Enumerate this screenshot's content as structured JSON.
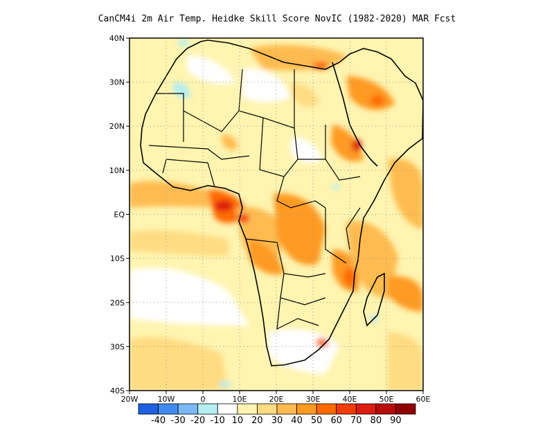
{
  "title": "CanCM4i  2m Air Temp. Heidke Skill Score NovIC (1982-2020) MAR Fcst",
  "map": {
    "region": "Africa",
    "lon_range": [
      -20,
      60
    ],
    "lat_range": [
      -40,
      40
    ],
    "lat_ticks": [
      "40N",
      "30N",
      "20N",
      "10N",
      "EQ",
      "10S",
      "20S",
      "30S",
      "40S"
    ],
    "lon_ticks": [
      "20W",
      "10W",
      "0",
      "10E",
      "20E",
      "30E",
      "40E",
      "50E",
      "60E"
    ],
    "gridlines": "dotted",
    "field": "Heidke Skill Score"
  },
  "colorbar": {
    "colors": [
      "#1f5fe0",
      "#3e8cf0",
      "#7cb8f6",
      "#b4eef0",
      "#ffffff",
      "#fff4b0",
      "#ffdc82",
      "#ffbb50",
      "#ff9a20",
      "#ff6a00",
      "#f43c08",
      "#dc1c10",
      "#b80a0a",
      "#900000"
    ],
    "labels": [
      "-40",
      "-30",
      "-20",
      "-10",
      "10",
      "20",
      "30",
      "40",
      "50",
      "60",
      "70",
      "80",
      "90"
    ]
  }
}
